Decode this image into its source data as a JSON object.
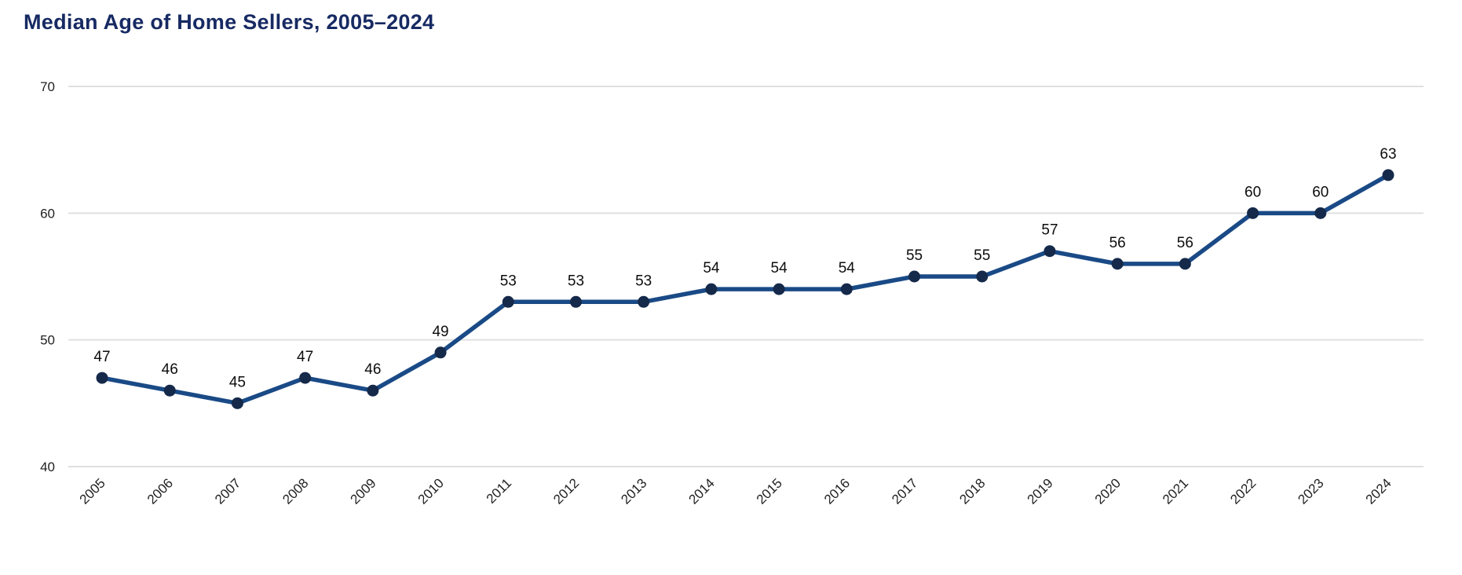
{
  "header": {
    "title": "Median Age of Home Sellers, 2005–2024"
  },
  "chart_data": {
    "type": "line",
    "title": "Median Age of Home Sellers, 2005–2024",
    "x": [
      "2005",
      "2006",
      "2007",
      "2008",
      "2009",
      "2010",
      "2011",
      "2012",
      "2013",
      "2014",
      "2015",
      "2016",
      "2017",
      "2018",
      "2019",
      "2020",
      "2021",
      "2022",
      "2023",
      "2024"
    ],
    "series": [
      {
        "name": "Median age of home sellers",
        "values": [
          47,
          46,
          45,
          47,
          46,
          49,
          53,
          53,
          53,
          54,
          54,
          54,
          55,
          55,
          57,
          56,
          56,
          60,
          60,
          63
        ]
      }
    ],
    "ylim": [
      40,
      70
    ],
    "yticks": [
      70,
      60,
      50,
      40
    ],
    "grid": "horizontal-only",
    "legend_position": "none",
    "point_labels_visible": true,
    "x_tick_rotation_deg": 45,
    "colors": {
      "line": "#1a4a86",
      "marker": "#15294a",
      "title": "#172a63",
      "gridline": "#e0e0e0",
      "tick_text": "#212121",
      "point_label_text": "#0d0d0d"
    }
  }
}
